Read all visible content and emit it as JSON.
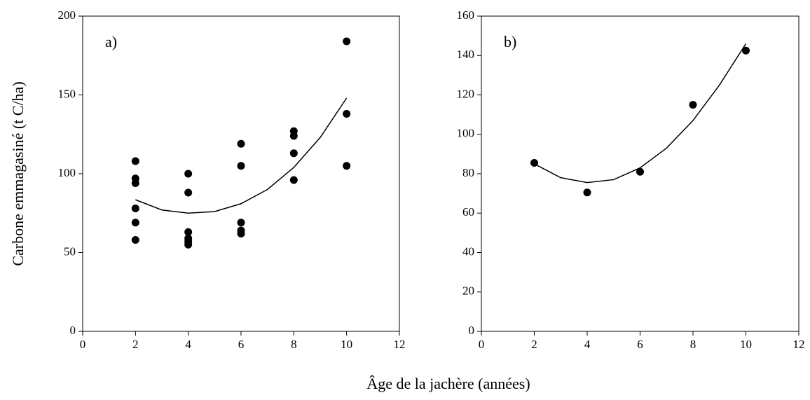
{
  "xlabel": "Âge de la jachère (années)",
  "chart_data": [
    {
      "type": "scatter",
      "annotation": "a)",
      "ylabel": "Carbone emmagasiné (t C/ha)",
      "xlim": [
        0,
        12
      ],
      "xticks": [
        0,
        2,
        4,
        6,
        8,
        10,
        12
      ],
      "ylim": [
        0,
        200
      ],
      "yticks": [
        0,
        50,
        100,
        150,
        200
      ],
      "color": "#000000",
      "points": {
        "x": [
          2,
          2,
          2,
          2,
          2,
          2,
          4,
          4,
          4,
          4,
          4,
          4,
          6,
          6,
          6,
          6,
          6,
          8,
          8,
          8,
          8,
          10,
          10,
          10
        ],
        "y": [
          108,
          97,
          94,
          78,
          69,
          58,
          100,
          88,
          63,
          59,
          57,
          55,
          119,
          105,
          69,
          64,
          62,
          127,
          124,
          113,
          96,
          184,
          138,
          105
        ]
      },
      "fit": {
        "x": [
          2,
          3,
          4,
          5,
          6,
          7,
          8,
          9,
          10
        ],
        "y": [
          83.5,
          77,
          75,
          76,
          81,
          90,
          104,
          123,
          148
        ]
      }
    },
    {
      "type": "scatter",
      "annotation": "b)",
      "xlim": [
        0,
        12
      ],
      "xticks": [
        0,
        2,
        4,
        6,
        8,
        10,
        12
      ],
      "ylim": [
        0,
        160
      ],
      "yticks": [
        0,
        20,
        40,
        60,
        80,
        100,
        120,
        140,
        160
      ],
      "color": "#000000",
      "points": {
        "x": [
          2,
          4,
          6,
          8,
          10
        ],
        "y": [
          85.5,
          70.5,
          81,
          115,
          142.5
        ]
      },
      "fit": {
        "x": [
          2,
          3,
          4,
          5,
          6,
          7,
          8,
          9,
          10
        ],
        "y": [
          85,
          78,
          75.5,
          77,
          83,
          93,
          107,
          125,
          146
        ]
      }
    }
  ]
}
